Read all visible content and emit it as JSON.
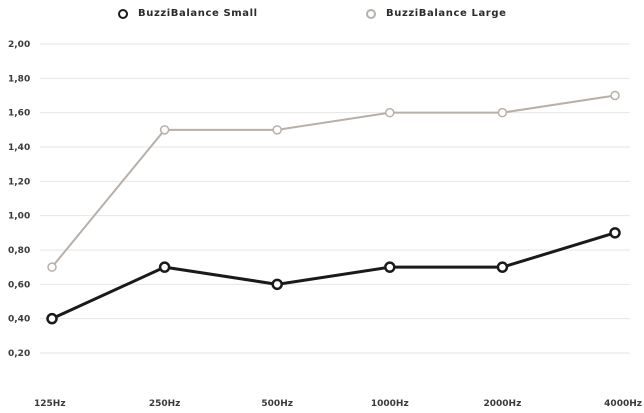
{
  "chart_data": {
    "type": "line",
    "title": "",
    "xlabel": "",
    "ylabel": "",
    "categories": [
      "125Hz",
      "250Hz",
      "500Hz",
      "1000Hz",
      "2000Hz",
      "4000Hz"
    ],
    "y_ticks": [
      "0,20",
      "0,40",
      "0,60",
      "0,80",
      "1,00",
      "1,20",
      "1,40",
      "1,60",
      "1,80",
      "2,00"
    ],
    "ylim": [
      0.2,
      2.0
    ],
    "grid": true,
    "legend_position": "top",
    "series": [
      {
        "name": "BuzziBalance Small",
        "values": [
          0.4,
          0.7,
          0.6,
          0.7,
          0.7,
          0.9
        ],
        "color": "#1a1a1a"
      },
      {
        "name": "BuzziBalance Large",
        "values": [
          0.7,
          1.5,
          1.5,
          1.6,
          1.6,
          1.7
        ],
        "color": "#b8b0a8"
      }
    ]
  }
}
